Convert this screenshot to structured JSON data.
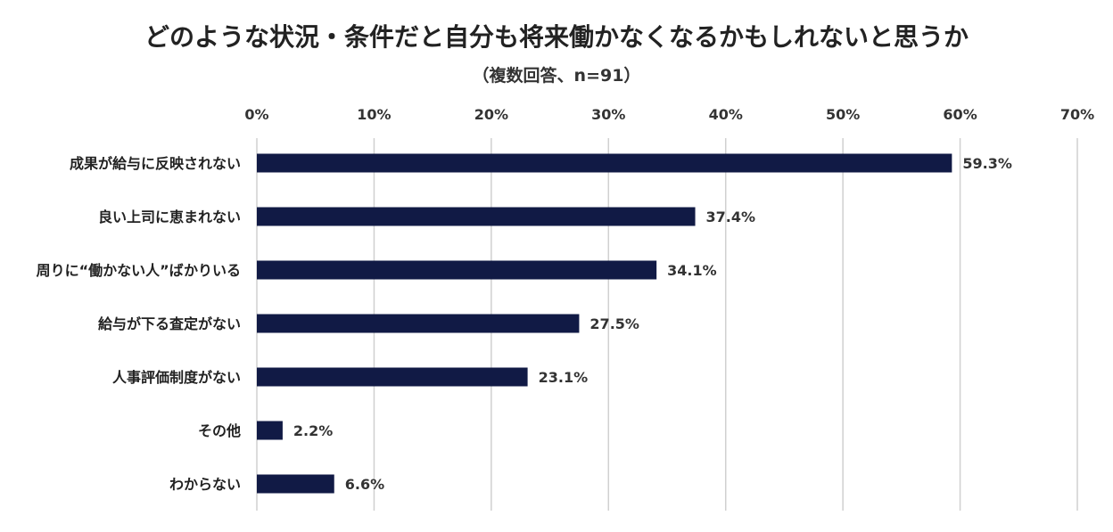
{
  "chart_data": {
    "type": "bar",
    "orientation": "horizontal",
    "title": "どのような状況・条件だと自分も将来働かなくなるかもしれないと思うか",
    "subtitle": "（複数回答、n=91）",
    "categories": [
      "成果が給与に反映されない",
      "良い上司に恵まれない",
      "周りに“働かない人”ばかりいる",
      "給与が下る査定がない",
      "人事評価制度がない",
      "その他",
      "わからない"
    ],
    "values": [
      59.3,
      37.4,
      34.1,
      27.5,
      23.1,
      2.2,
      6.6
    ],
    "data_labels": [
      "59.3%",
      "37.4%",
      "34.1%",
      "27.5%",
      "23.1%",
      "2.2%",
      "6.6%"
    ],
    "xlim": [
      0,
      70
    ],
    "x_ticks": [
      0,
      10,
      20,
      30,
      40,
      50,
      60,
      70
    ],
    "x_tick_labels": [
      "0%",
      "10%",
      "20%",
      "30%",
      "40%",
      "50%",
      "60%",
      "70%"
    ],
    "xlabel": "",
    "ylabel": "",
    "grid": true,
    "axis_position": "top",
    "bar_color": "#111a45",
    "grid_color": "#d0d0d0"
  }
}
